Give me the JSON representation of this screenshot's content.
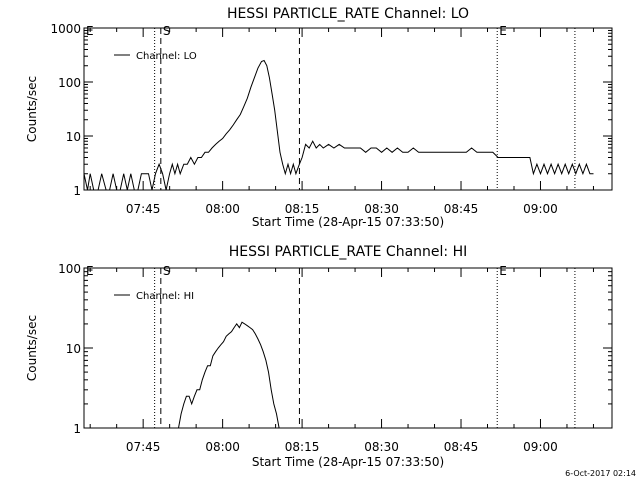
{
  "chart_data": [
    {
      "type": "line",
      "title": "HESSI PARTICLE_RATE Channel: LO",
      "xlabel": "Start Time (28-Apr-15 07:33:50)",
      "ylabel": "Counts/sec",
      "yscale": "log",
      "ylim": [
        1,
        1000
      ],
      "xlim": [
        "07:33:50",
        "09:13:30"
      ],
      "x_ticks": [
        "07:45",
        "08:00",
        "08:15",
        "08:30",
        "08:45",
        "09:00"
      ],
      "y_ticks": [
        "1",
        "10",
        "100",
        "1000"
      ],
      "legend": "Channel: LO",
      "legend_position": "top-left",
      "markers": [
        {
          "label": "E",
          "time": "07:33:50",
          "style": "dotted"
        },
        {
          "label": "",
          "time": "07:47:10",
          "style": "dotted"
        },
        {
          "label": "S",
          "time": "07:48:20",
          "style": "dashed"
        },
        {
          "label": "",
          "time": "08:14:30",
          "style": "dashed"
        },
        {
          "label": "E",
          "time": "08:51:50",
          "style": "dotted"
        },
        {
          "label": "",
          "time": "09:06:30",
          "style": "dotted"
        }
      ],
      "series": [
        {
          "name": "Channel: LO",
          "points": [
            [
              "07:33:50",
              2
            ],
            [
              "07:34:30",
              1
            ],
            [
              "07:35:00",
              2
            ],
            [
              "07:35:40",
              1
            ],
            [
              "07:36:30",
              1
            ],
            [
              "07:37:10",
              2
            ],
            [
              "07:38:00",
              1
            ],
            [
              "07:38:40",
              1
            ],
            [
              "07:39:20",
              2
            ],
            [
              "07:40:00",
              1
            ],
            [
              "07:40:40",
              1
            ],
            [
              "07:41:20",
              2
            ],
            [
              "07:42:00",
              1
            ],
            [
              "07:42:40",
              2
            ],
            [
              "07:43:20",
              1
            ],
            [
              "07:44:00",
              1
            ],
            [
              "07:44:40",
              2
            ],
            [
              "07:45:20",
              2
            ],
            [
              "07:46:00",
              2
            ],
            [
              "07:46:40",
              1
            ],
            [
              "07:47:20",
              2
            ],
            [
              "07:48:00",
              3
            ],
            [
              "07:48:40",
              2
            ],
            [
              "07:49:20",
              1
            ],
            [
              "07:50:00",
              2
            ],
            [
              "07:50:30",
              3
            ],
            [
              "07:51:00",
              2
            ],
            [
              "07:51:30",
              3
            ],
            [
              "07:52:00",
              2
            ],
            [
              "07:52:40",
              3
            ],
            [
              "07:53:20",
              3
            ],
            [
              "07:54:00",
              4
            ],
            [
              "07:54:40",
              3
            ],
            [
              "07:55:20",
              4
            ],
            [
              "07:56:00",
              4
            ],
            [
              "07:56:40",
              5
            ],
            [
              "07:57:20",
              5
            ],
            [
              "07:58:00",
              6
            ],
            [
              "07:58:40",
              7
            ],
            [
              "07:59:20",
              8
            ],
            [
              "08:00:00",
              9
            ],
            [
              "08:00:40",
              11
            ],
            [
              "08:01:20",
              13
            ],
            [
              "08:02:00",
              16
            ],
            [
              "08:02:40",
              20
            ],
            [
              "08:03:20",
              25
            ],
            [
              "08:04:00",
              35
            ],
            [
              "08:04:40",
              50
            ],
            [
              "08:05:20",
              80
            ],
            [
              "08:06:00",
              120
            ],
            [
              "08:06:40",
              180
            ],
            [
              "08:07:20",
              240
            ],
            [
              "08:07:50",
              250
            ],
            [
              "08:08:20",
              200
            ],
            [
              "08:08:50",
              120
            ],
            [
              "08:09:20",
              60
            ],
            [
              "08:09:50",
              30
            ],
            [
              "08:10:20",
              12
            ],
            [
              "08:10:50",
              5
            ],
            [
              "08:11:20",
              3
            ],
            [
              "08:11:50",
              2
            ],
            [
              "08:12:20",
              3
            ],
            [
              "08:12:50",
              2
            ],
            [
              "08:13:20",
              3
            ],
            [
              "08:13:50",
              2
            ],
            [
              "08:14:30",
              3
            ],
            [
              "08:15:00",
              4
            ],
            [
              "08:15:40",
              7
            ],
            [
              "08:16:20",
              6
            ],
            [
              "08:17:00",
              8
            ],
            [
              "08:17:40",
              6
            ],
            [
              "08:18:20",
              7
            ],
            [
              "08:19:00",
              6
            ],
            [
              "08:20:00",
              7
            ],
            [
              "08:21:00",
              6
            ],
            [
              "08:22:00",
              7
            ],
            [
              "08:23:00",
              6
            ],
            [
              "08:24:00",
              6
            ],
            [
              "08:25:00",
              6
            ],
            [
              "08:26:00",
              6
            ],
            [
              "08:27:00",
              5
            ],
            [
              "08:28:00",
              6
            ],
            [
              "08:29:00",
              6
            ],
            [
              "08:30:00",
              5
            ],
            [
              "08:31:00",
              6
            ],
            [
              "08:32:00",
              5
            ],
            [
              "08:33:00",
              6
            ],
            [
              "08:34:00",
              5
            ],
            [
              "08:35:00",
              5
            ],
            [
              "08:36:00",
              6
            ],
            [
              "08:37:00",
              5
            ],
            [
              "08:38:00",
              5
            ],
            [
              "08:39:00",
              5
            ],
            [
              "08:40:00",
              5
            ],
            [
              "08:41:00",
              5
            ],
            [
              "08:42:00",
              5
            ],
            [
              "08:43:00",
              5
            ],
            [
              "08:44:00",
              5
            ],
            [
              "08:45:00",
              5
            ],
            [
              "08:46:00",
              5
            ],
            [
              "08:47:00",
              6
            ],
            [
              "08:48:00",
              5
            ],
            [
              "08:49:00",
              5
            ],
            [
              "08:50:00",
              5
            ],
            [
              "08:51:00",
              5
            ],
            [
              "08:52:00",
              4
            ],
            [
              "08:53:00",
              4
            ],
            [
              "08:54:00",
              4
            ],
            [
              "08:55:00",
              4
            ],
            [
              "08:56:00",
              4
            ],
            [
              "08:57:00",
              4
            ],
            [
              "08:58:00",
              4
            ],
            [
              "08:58:40",
              2
            ],
            [
              "08:59:20",
              3
            ],
            [
              "09:00:00",
              2
            ],
            [
              "09:00:40",
              3
            ],
            [
              "09:01:20",
              2
            ],
            [
              "09:02:00",
              3
            ],
            [
              "09:02:40",
              2
            ],
            [
              "09:03:20",
              3
            ],
            [
              "09:04:00",
              2
            ],
            [
              "09:04:40",
              3
            ],
            [
              "09:05:20",
              2
            ],
            [
              "09:06:00",
              3
            ],
            [
              "09:06:40",
              2
            ],
            [
              "09:07:20",
              3
            ],
            [
              "09:08:00",
              2
            ],
            [
              "09:08:40",
              3
            ],
            [
              "09:09:20",
              2
            ],
            [
              "09:10:00",
              2
            ]
          ]
        }
      ]
    },
    {
      "type": "line",
      "title": "HESSI PARTICLE_RATE Channel: HI",
      "xlabel": "Start Time (28-Apr-15 07:33:50)",
      "ylabel": "Counts/sec",
      "yscale": "log",
      "ylim": [
        1,
        100
      ],
      "xlim": [
        "07:33:50",
        "09:13:30"
      ],
      "x_ticks": [
        "07:45",
        "08:00",
        "08:15",
        "08:30",
        "08:45",
        "09:00"
      ],
      "y_ticks": [
        "1",
        "10",
        "100"
      ],
      "legend": "Channel: HI",
      "legend_position": "top-left",
      "markers": [
        {
          "label": "E",
          "time": "07:33:50",
          "style": "dotted"
        },
        {
          "label": "",
          "time": "07:47:10",
          "style": "dotted"
        },
        {
          "label": "S",
          "time": "07:48:20",
          "style": "dashed"
        },
        {
          "label": "",
          "time": "08:14:30",
          "style": "dashed"
        },
        {
          "label": "E",
          "time": "08:51:50",
          "style": "dotted"
        },
        {
          "label": "",
          "time": "09:06:30",
          "style": "dotted"
        }
      ],
      "series": [
        {
          "name": "Channel: HI",
          "points": [
            [
              "07:51:40",
              1
            ],
            [
              "07:52:10",
              1.5
            ],
            [
              "07:52:40",
              2
            ],
            [
              "07:53:10",
              2.5
            ],
            [
              "07:53:40",
              2.5
            ],
            [
              "07:54:10",
              2
            ],
            [
              "07:54:40",
              2.5
            ],
            [
              "07:55:10",
              3
            ],
            [
              "07:55:40",
              3
            ],
            [
              "07:56:10",
              4
            ],
            [
              "07:56:40",
              5
            ],
            [
              "07:57:10",
              6
            ],
            [
              "07:57:40",
              6
            ],
            [
              "07:58:10",
              8
            ],
            [
              "07:58:40",
              9
            ],
            [
              "07:59:10",
              10
            ],
            [
              "07:59:40",
              11
            ],
            [
              "08:00:10",
              12
            ],
            [
              "08:00:40",
              14
            ],
            [
              "08:01:10",
              15
            ],
            [
              "08:01:40",
              16
            ],
            [
              "08:02:10",
              18
            ],
            [
              "08:02:40",
              20
            ],
            [
              "08:03:10",
              18
            ],
            [
              "08:03:40",
              21
            ],
            [
              "08:04:10",
              20
            ],
            [
              "08:04:40",
              19
            ],
            [
              "08:05:10",
              18
            ],
            [
              "08:05:40",
              17
            ],
            [
              "08:06:10",
              15
            ],
            [
              "08:06:40",
              13
            ],
            [
              "08:07:10",
              11
            ],
            [
              "08:07:40",
              9
            ],
            [
              "08:08:10",
              7
            ],
            [
              "08:08:40",
              5
            ],
            [
              "08:09:10",
              3
            ],
            [
              "08:09:40",
              2
            ],
            [
              "08:10:10",
              1.5
            ],
            [
              "08:10:40",
              1
            ]
          ]
        }
      ]
    }
  ],
  "footer": {
    "timestamp": "6-Oct-2017 02:14"
  }
}
